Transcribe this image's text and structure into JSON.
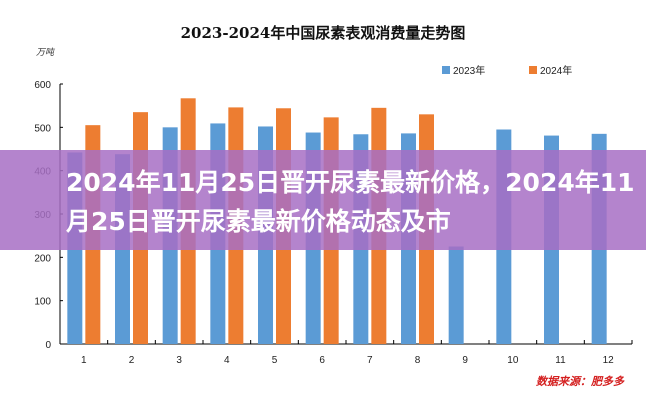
{
  "chart_data": {
    "type": "bar",
    "title": "2023-2024年中国尿素表观消费量走势图",
    "ylabel": "万吨",
    "xlabel": "",
    "categories": [
      "1",
      "2",
      "3",
      "4",
      "5",
      "6",
      "7",
      "8",
      "9",
      "10",
      "11",
      "12"
    ],
    "series": [
      {
        "name": "2023年",
        "color": "#5b9bd5",
        "values": [
          442,
          438,
          500,
          509,
          502,
          488,
          484,
          486,
          225,
          495,
          481,
          485
        ]
      },
      {
        "name": "2024年",
        "color": "#ed7d31",
        "values": [
          505,
          535,
          567,
          546,
          544,
          523,
          545,
          530,
          null,
          null,
          null,
          null
        ]
      }
    ],
    "ylim": [
      0,
      600
    ],
    "yticks": [
      0,
      100,
      200,
      300,
      400,
      500,
      600
    ],
    "grid": false,
    "legend": "top-right",
    "source": "数据来源：肥多多"
  },
  "banner": {
    "text": "2024年11月25日晋开尿素最新价格，2024年11月25日晋开尿素最新价格动态及市",
    "color": "#a76ec4"
  }
}
